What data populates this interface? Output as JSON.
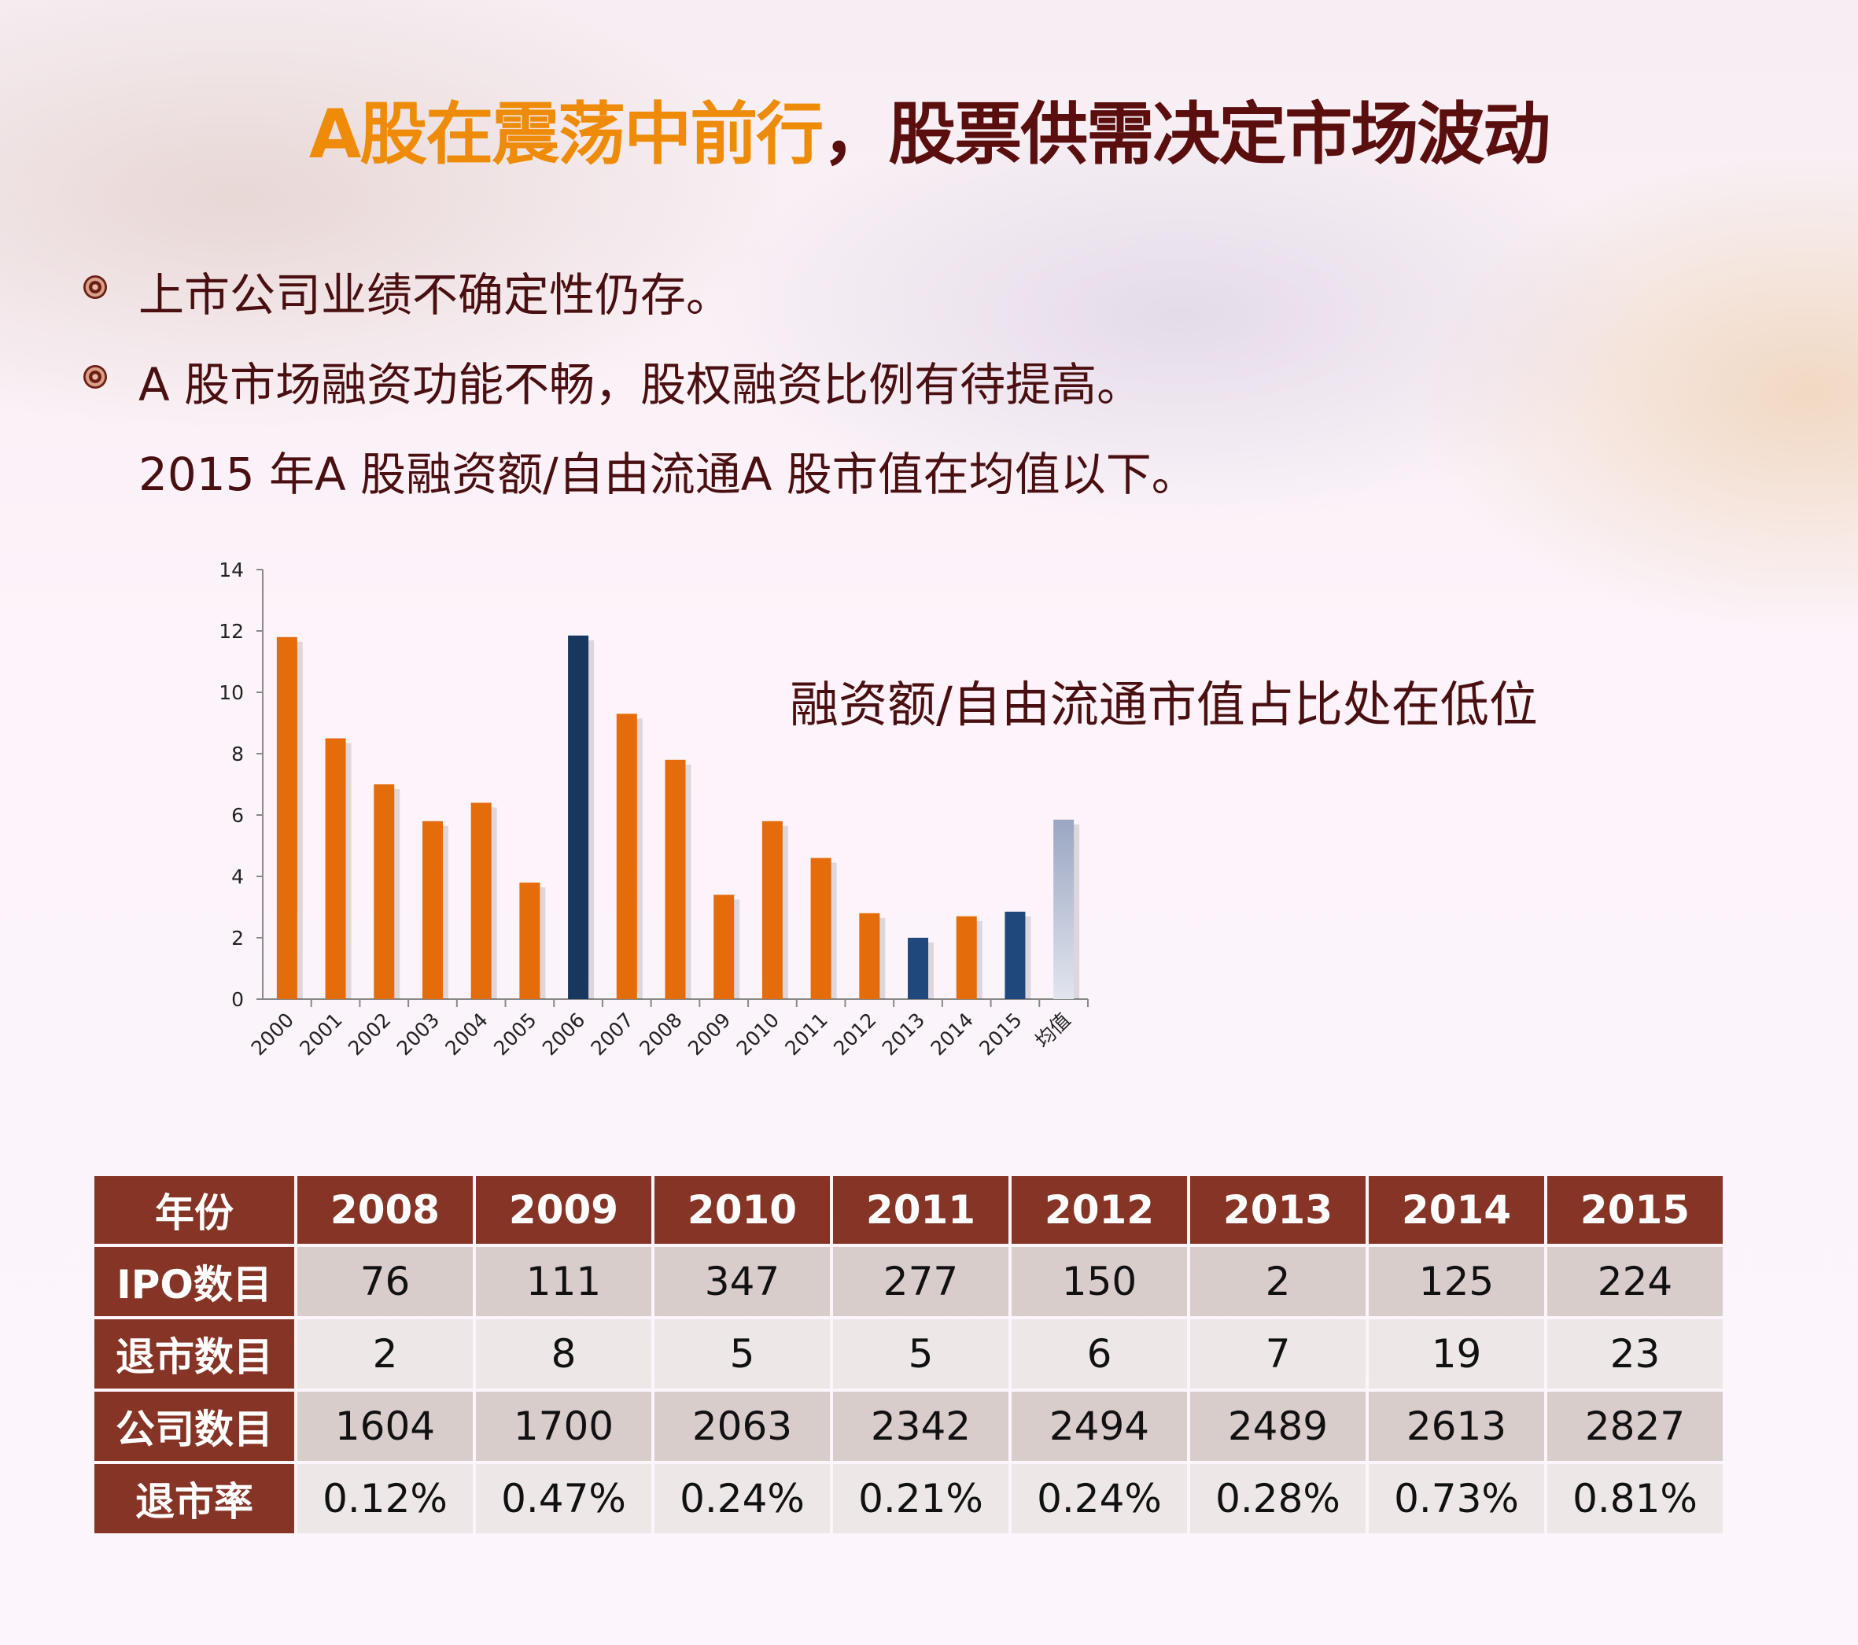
{
  "title": {
    "part1": "A股在震荡中前行",
    "part2": "，股票供需决定市场波动"
  },
  "bullets": [
    "上市公司业绩不确定性仍存。",
    "A 股市场融资功能不畅，股权融资比例有待提高。",
    "2015 年A 股融资额/自由流通A 股市值在均值以下。"
  ],
  "chart_data": {
    "type": "bar",
    "title": "",
    "annotation": "融资额/自由流通市值占比处在低位",
    "categories": [
      "2000",
      "2001",
      "2002",
      "2003",
      "2004",
      "2005",
      "2006",
      "2007",
      "2008",
      "2009",
      "2010",
      "2011",
      "2012",
      "2013",
      "2014",
      "2015",
      "均值"
    ],
    "values": [
      11.8,
      8.5,
      7.0,
      5.8,
      6.4,
      3.8,
      11.85,
      9.3,
      7.8,
      3.4,
      5.8,
      4.6,
      2.8,
      2.0,
      2.7,
      2.85,
      5.85
    ],
    "bar_colors": [
      "#e46c0a",
      "#e46c0a",
      "#e46c0a",
      "#e46c0a",
      "#e46c0a",
      "#e46c0a",
      "#17375e",
      "#e46c0a",
      "#e46c0a",
      "#e46c0a",
      "#e46c0a",
      "#e46c0a",
      "#e46c0a",
      "#1f497d",
      "#e46c0a",
      "#1f497d",
      "#a6b0c8"
    ],
    "ylim": [
      0,
      14
    ],
    "yticks": [
      0,
      2,
      4,
      6,
      8,
      10,
      12,
      14
    ],
    "grid": false,
    "xlabel": "",
    "ylabel": ""
  },
  "table": {
    "header": [
      "年份",
      "2008",
      "2009",
      "2010",
      "2011",
      "2012",
      "2013",
      "2014",
      "2015"
    ],
    "rows": [
      [
        "IPO数目",
        "76",
        "111",
        "347",
        "277",
        "150",
        "2",
        "125",
        "224"
      ],
      [
        "退市数目",
        "2",
        "8",
        "5",
        "5",
        "6",
        "7",
        "19",
        "23"
      ],
      [
        "公司数目",
        "1604",
        "1700",
        "2063",
        "2342",
        "2494",
        "2489",
        "2613",
        "2827"
      ],
      [
        "退市率",
        "0.12%",
        "0.47%",
        "0.24%",
        "0.21%",
        "0.24%",
        "0.28%",
        "0.73%",
        "0.81%"
      ]
    ]
  },
  "colors": {
    "header_bg": "#853425",
    "title_accent": "#ee8c0a",
    "title_dark": "#5a0e0e"
  }
}
